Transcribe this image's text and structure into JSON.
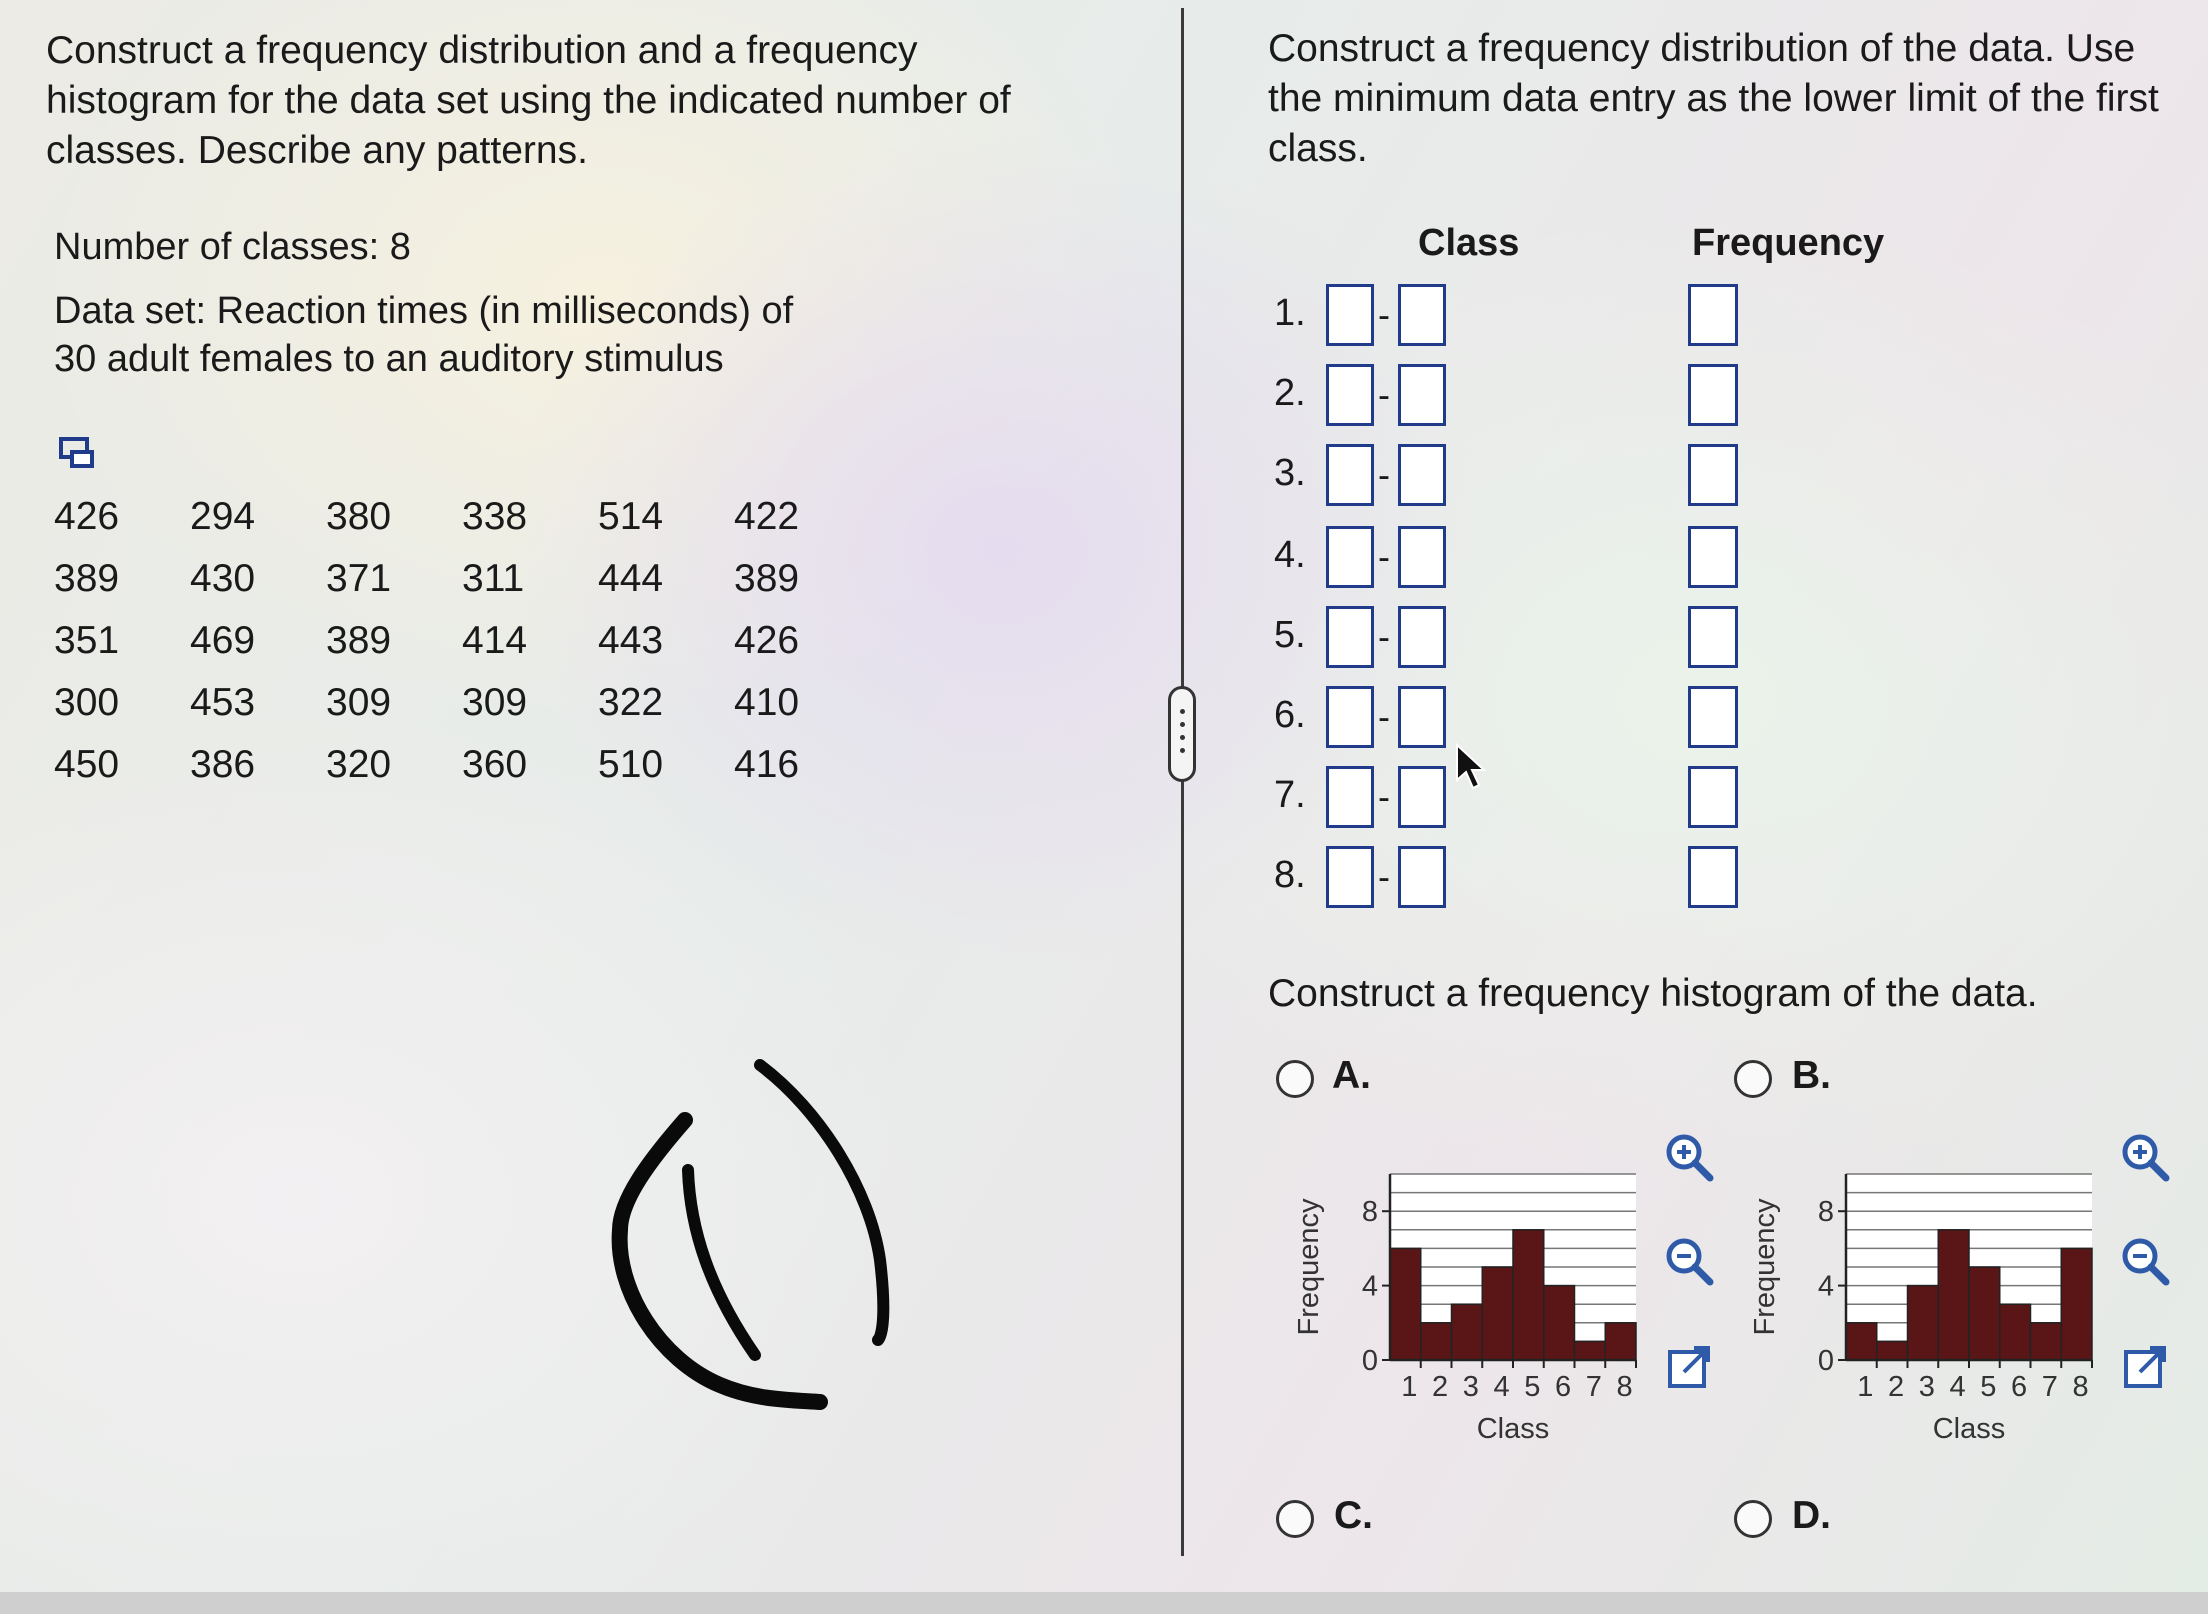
{
  "left": {
    "prompt": "Construct a frequency distribution and a frequency histogram for the data set using the indicated number of classes. Describe any patterns.",
    "num_classes_text": "Number of classes: 8",
    "dataset_line1": "Data set: Reaction times (in milliseconds) of",
    "dataset_line2": "30 adult females to an auditory stimulus",
    "data_rows": [
      [
        "426",
        "294",
        "380",
        "338",
        "514",
        "422"
      ],
      [
        "389",
        "430",
        "371",
        "311",
        "444",
        "389"
      ],
      [
        "351",
        "469",
        "389",
        "414",
        "443",
        "426"
      ],
      [
        "300",
        "453",
        "309",
        "309",
        "322",
        "410"
      ],
      [
        "450",
        "386",
        "320",
        "360",
        "510",
        "416"
      ]
    ]
  },
  "right": {
    "prompt": "Construct a frequency distribution of the data. Use the minimum data entry as the lower limit of the first class.",
    "class_header": "Class",
    "frequency_header": "Frequency",
    "rows": [
      "1.",
      "2.",
      "3.",
      "4.",
      "5.",
      "6.",
      "7.",
      "8."
    ],
    "dash": "-",
    "hist_prompt": "Construct a frequency histogram of the data.",
    "options": {
      "a": "A.",
      "b": "B.",
      "c": "C.",
      "d": "D."
    }
  },
  "chart_data": [
    {
      "type": "bar",
      "option": "A",
      "categories": [
        "1",
        "2",
        "3",
        "4",
        "5",
        "6",
        "7",
        "8"
      ],
      "values": [
        6,
        2,
        3,
        5,
        7,
        4,
        1,
        2
      ],
      "xlabel": "Class",
      "ylabel": "Frequency",
      "yticks": [
        "0",
        "4",
        "8"
      ],
      "ylim": [
        0,
        10
      ],
      "grid": true,
      "bar_color": "#5a1616"
    },
    {
      "type": "bar",
      "option": "B",
      "categories": [
        "1",
        "2",
        "3",
        "4",
        "5",
        "6",
        "7",
        "8"
      ],
      "values": [
        2,
        1,
        4,
        7,
        5,
        3,
        2,
        6
      ],
      "xlabel": "Class",
      "ylabel": "Frequency",
      "yticks": [
        "0",
        "4",
        "8"
      ],
      "ylim": [
        0,
        10
      ],
      "grid": true,
      "bar_color": "#5a1616"
    }
  ]
}
